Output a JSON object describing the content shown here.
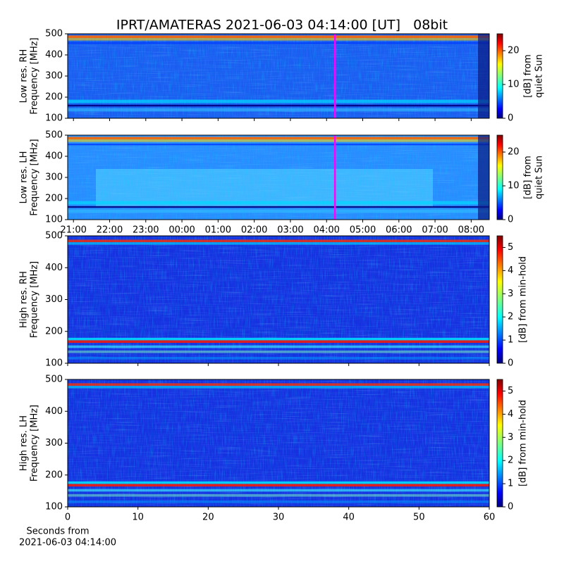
{
  "chart_data": {
    "type": "spectrogram",
    "title": "IPRT/AMATERAS 2021-06-03 04:14:00 [UT]   08bit",
    "colormap": "jet",
    "time_axis": {
      "xlim": [
        -0.16,
        11.5
      ],
      "xticks": [
        {
          "value": 0,
          "label": "21:00"
        },
        {
          "value": 1,
          "label": "22:00"
        },
        {
          "value": 2,
          "label": "23:00"
        },
        {
          "value": 3,
          "label": "00:00"
        },
        {
          "value": 4,
          "label": "01:00"
        },
        {
          "value": 5,
          "label": "02:00"
        },
        {
          "value": 6,
          "label": "03:00"
        },
        {
          "value": 7,
          "label": "04:00"
        },
        {
          "value": 8,
          "label": "05:00"
        },
        {
          "value": 9,
          "label": "06:00"
        },
        {
          "value": 10,
          "label": "07:00"
        },
        {
          "value": 11,
          "label": "08:00"
        }
      ],
      "marker": 7.233,
      "marker_color": "#ff00ff"
    },
    "seconds_axis": {
      "xlim": [
        0,
        60
      ],
      "xticks": [
        0,
        10,
        20,
        30,
        40,
        50,
        60
      ],
      "xlabel": [
        "Seconds from",
        "2021-06-03 04:14:00"
      ]
    },
    "panels": [
      {
        "ylabel": [
          "Low res. RH",
          "Frequency [MHz]"
        ],
        "x_axis": "time_axis",
        "ylim": [
          100,
          500
        ],
        "yticks": [
          100,
          200,
          300,
          400,
          500
        ],
        "colorbar": {
          "label": [
            "[dB] from",
            "quiet Sun"
          ],
          "lim": [
            0,
            25
          ],
          "ticks": [
            0,
            10,
            20
          ]
        }
      },
      {
        "ylabel": [
          "Low res. LH",
          "Frequency [MHz]"
        ],
        "x_axis": "time_axis",
        "ylim": [
          100,
          500
        ],
        "yticks": [
          100,
          200,
          300,
          400,
          500
        ],
        "colorbar": {
          "label": [
            "[dB] from",
            "quiet Sun"
          ],
          "lim": [
            0,
            25
          ],
          "ticks": [
            0,
            10,
            20
          ]
        }
      },
      {
        "ylabel": [
          "High res. RH",
          "Frequency [MHz]"
        ],
        "x_axis": "seconds_axis",
        "ylim": [
          100,
          500
        ],
        "yticks": [
          100,
          200,
          300,
          400,
          500
        ],
        "colorbar": {
          "label": [
            "[dB] from min-hold"
          ],
          "lim": [
            0,
            5.5
          ],
          "ticks": [
            0,
            1,
            2,
            3,
            4,
            5
          ]
        }
      },
      {
        "ylabel": [
          "High res. LH",
          "Frequency [MHz]"
        ],
        "x_axis": "seconds_axis",
        "ylim": [
          100,
          500
        ],
        "yticks": [
          100,
          200,
          300,
          400,
          500
        ],
        "colorbar": {
          "label": [
            "[dB] from min-hold"
          ],
          "lim": [
            0,
            5.5
          ],
          "ticks": [
            0,
            1,
            2,
            3,
            4,
            5
          ]
        }
      }
    ]
  }
}
